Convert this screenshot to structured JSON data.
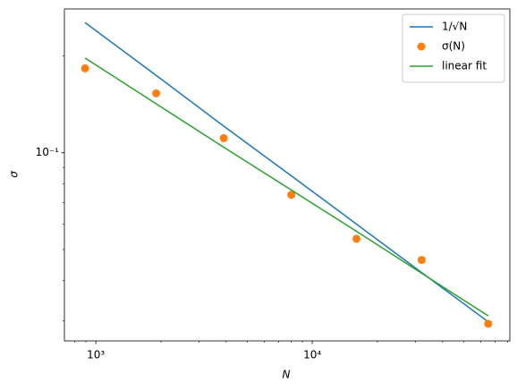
{
  "chart_data": {
    "type": "line",
    "x_label": "N",
    "y_label": "σ",
    "x": [
      892,
      1900,
      3900,
      8000,
      16000,
      32000,
      65000
    ],
    "series": [
      {
        "name": "1/√N",
        "color": "#1f77b4",
        "style": "line",
        "values": [
          0.254,
          0.174,
          0.121,
          0.0848,
          0.06,
          0.0424,
          0.0298
        ]
      },
      {
        "name": "σ(N)",
        "color": "#ff7f0e",
        "style": "marker",
        "values": [
          0.183,
          0.153,
          0.111,
          0.074,
          0.054,
          0.0464,
          0.0294
        ]
      },
      {
        "name": "linear fit",
        "color": "#2ca02c",
        "style": "line",
        "values": [
          0.197,
          0.142,
          0.104,
          0.0766,
          0.057,
          0.0422,
          0.0311
        ]
      }
    ],
    "xscale": "log",
    "yscale": "log",
    "xlim": [
      716,
      81800
    ],
    "ylim": [
      0.026,
      0.28
    ],
    "xticks": [
      {
        "value": 1000,
        "label": "10³"
      },
      {
        "value": 10000,
        "label": "10⁴"
      }
    ],
    "yticks": [
      {
        "value": 0.1,
        "label": "10⁻¹"
      }
    ],
    "xminorticks": [
      800,
      900,
      2000,
      3000,
      4000,
      5000,
      6000,
      7000,
      8000,
      9000,
      20000,
      30000,
      40000,
      50000,
      60000,
      70000,
      80000
    ],
    "yminorticks": [
      0.03,
      0.04,
      0.05,
      0.06,
      0.07,
      0.08,
      0.09,
      0.2
    ],
    "legend": "upper right"
  }
}
